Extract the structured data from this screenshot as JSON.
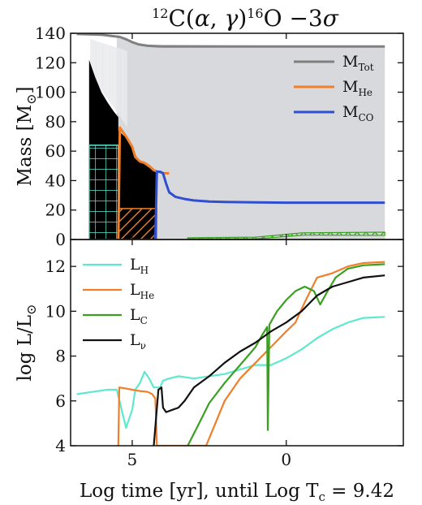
{
  "chart_data": [
    {
      "type": "line",
      "title": "12C(α, γ)16O −3σ",
      "ylabel": "Mass [M⊙]",
      "xlabel": "Log time [yr], until Log Tc = 9.42",
      "x_direction": "reversed",
      "xlim": [
        7.0,
        -3.8
      ],
      "ylim": [
        0,
        140
      ],
      "xticks": [
        5,
        0
      ],
      "yticks": [
        0,
        20,
        40,
        60,
        80,
        100,
        120,
        140
      ],
      "legend_position": "upper-right",
      "series": [
        {
          "name": "M_Tot",
          "color": "#808080",
          "x": [
            6.8,
            6.0,
            5.6,
            5.4,
            5.2,
            5.0,
            4.8,
            4.5,
            4.2,
            4.0,
            3.0,
            2.0,
            1.0,
            0.0,
            -1.0,
            -2.0,
            -3.2
          ],
          "y": [
            139.5,
            139.0,
            138.0,
            137.5,
            136.0,
            134.0,
            132.5,
            131.5,
            131.2,
            131.0,
            131.0,
            131.0,
            131.0,
            131.0,
            131.0,
            131.0,
            131.0
          ]
        },
        {
          "name": "M_He",
          "color": "#f07f2a",
          "x": [
            5.45,
            5.4,
            5.2,
            5.0,
            4.9,
            4.75,
            4.6,
            4.45,
            4.35,
            4.3,
            4.15,
            4.05,
            4.0,
            3.8
          ],
          "y": [
            0,
            76,
            70,
            63,
            56,
            53,
            52,
            50,
            48,
            47,
            46,
            45.5,
            45,
            45
          ]
        },
        {
          "name": "M_CO",
          "color": "#2f4fd0",
          "x": [
            4.25,
            4.2,
            4.1,
            4.0,
            3.9,
            3.8,
            3.6,
            3.3,
            3.0,
            2.5,
            2.0,
            1.0,
            0.0,
            -1.0,
            -2.0,
            -3.2
          ],
          "y": [
            0,
            46,
            46,
            45,
            38,
            32,
            29,
            27.5,
            26.5,
            25.8,
            25.5,
            25.2,
            25.0,
            25.0,
            25.0,
            25.0
          ]
        }
      ],
      "regions": [
        {
          "kind": "radiative (grey)",
          "x_range": [
            5.5,
            -3.2
          ],
          "y_top": [
            139,
            131
          ]
        },
        {
          "kind": "convective envelope (black)",
          "x_range": [
            6.4,
            4.2
          ],
          "y_top": [
            122,
            45
          ]
        },
        {
          "kind": "H-burning convection (cyan hatch)",
          "x_range": [
            6.4,
            5.45
          ],
          "y_range": [
            0,
            64
          ]
        },
        {
          "kind": "He-burning convection (orange hatch)",
          "x_range": [
            5.45,
            4.2
          ],
          "y_range": [
            0,
            21
          ]
        },
        {
          "kind": "C-burning shell convection (green hatch)",
          "x_range": [
            3.2,
            -3.2
          ],
          "y_range": [
            0,
            5
          ]
        }
      ]
    },
    {
      "type": "line",
      "ylabel": "log L/L⊙",
      "xlabel": "Log time [yr], until Log Tc = 9.42",
      "x_direction": "reversed",
      "xlim": [
        7.0,
        -3.8
      ],
      "ylim": [
        4,
        13.2
      ],
      "xticks": [
        5,
        0
      ],
      "yticks": [
        4,
        6,
        8,
        10,
        12
      ],
      "legend_position": "upper-left",
      "series": [
        {
          "name": "L_H",
          "color": "#5ee8cf",
          "x": [
            6.8,
            6.3,
            5.8,
            5.5,
            5.2,
            5.0,
            4.9,
            4.75,
            4.6,
            4.45,
            4.3,
            4.1,
            4.0,
            3.8,
            3.5,
            3.0,
            2.5,
            2.0,
            1.5,
            1.0,
            0.5,
            0.0,
            -0.5,
            -1.0,
            -1.5,
            -2.0,
            -2.5,
            -3.2
          ],
          "y": [
            6.3,
            6.4,
            6.5,
            6.5,
            4.8,
            5.6,
            6.5,
            6.8,
            7.3,
            7.0,
            6.6,
            6.6,
            6.9,
            7.0,
            7.1,
            7.0,
            7.1,
            7.2,
            7.4,
            7.6,
            7.6,
            7.9,
            8.3,
            8.8,
            9.2,
            9.5,
            9.7,
            9.75
          ]
        },
        {
          "name": "L_He",
          "color": "#f07f2a",
          "x": [
            5.45,
            5.42,
            5.2,
            5.0,
            4.8,
            4.5,
            4.35,
            4.25,
            4.22,
            4.2,
            4.2,
            2.6,
            2.3,
            2.0,
            1.5,
            1.0,
            0.5,
            0.0,
            -0.3,
            -0.6,
            -1.0,
            -1.5,
            -2.0,
            -2.5,
            -3.2
          ],
          "y": [
            4.0,
            6.6,
            6.55,
            6.5,
            6.45,
            6.4,
            6.3,
            6.1,
            5.0,
            4.0,
            4.0,
            4.0,
            5.0,
            6.0,
            7.0,
            7.7,
            8.4,
            9.1,
            9.5,
            10.4,
            11.5,
            11.7,
            12.0,
            12.15,
            12.2
          ]
        },
        {
          "name": "L_C",
          "color": "#3aa020",
          "x": [
            3.2,
            2.9,
            2.5,
            2.0,
            1.5,
            1.0,
            0.8,
            0.62,
            0.6,
            0.55,
            0.3,
            0.0,
            -0.3,
            -0.6,
            -0.9,
            -1.1,
            -1.3,
            -1.6,
            -2.0,
            -2.5,
            -3.2
          ],
          "y": [
            4.0,
            4.8,
            5.9,
            6.8,
            7.6,
            8.4,
            8.9,
            9.3,
            4.7,
            9.4,
            10.0,
            10.5,
            10.9,
            11.1,
            10.9,
            10.3,
            10.8,
            11.5,
            11.9,
            12.05,
            12.1
          ]
        },
        {
          "name": "L_ν",
          "color": "#111111",
          "x": [
            4.3,
            4.15,
            4.05,
            4.0,
            3.9,
            3.7,
            3.5,
            3.3,
            3.0,
            2.5,
            2.0,
            1.5,
            1.0,
            0.5,
            0.0,
            -0.5,
            -1.0,
            -1.5,
            -2.0,
            -2.5,
            -3.2
          ],
          "y": [
            4.0,
            6.5,
            6.6,
            5.7,
            5.5,
            5.6,
            5.7,
            6.0,
            6.6,
            7.1,
            7.7,
            8.2,
            8.6,
            9.1,
            9.5,
            10.0,
            10.7,
            11.1,
            11.3,
            11.5,
            11.6
          ]
        }
      ]
    }
  ]
}
